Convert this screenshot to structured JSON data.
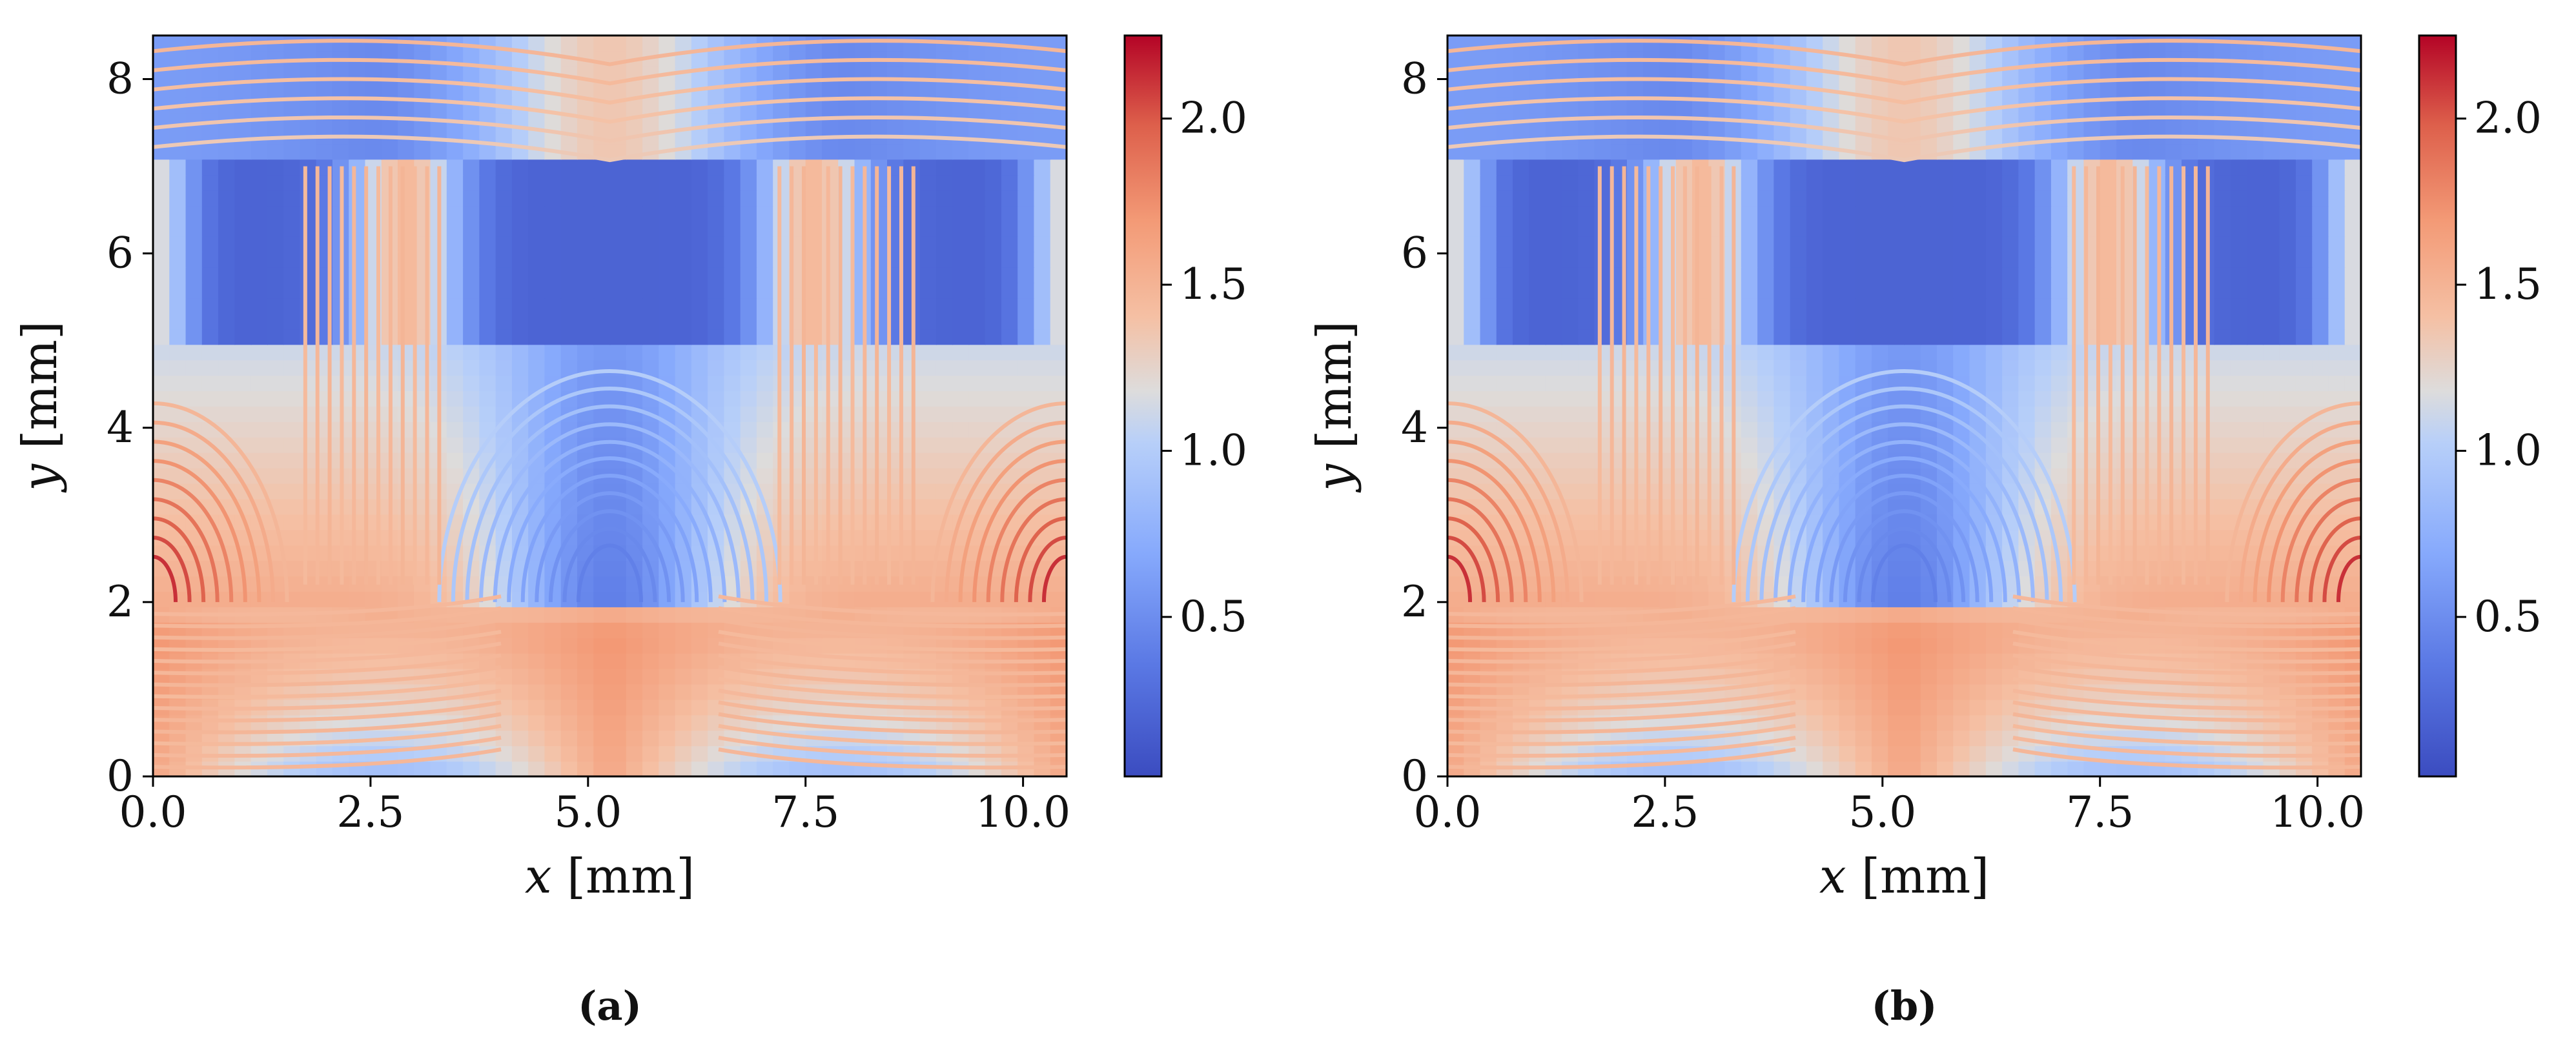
{
  "chart_data": [
    {
      "type": "heatmap",
      "panel_label": "(a)",
      "xlabel_var": "x",
      "xlabel_unit": " [mm]",
      "ylabel_var": "y",
      "ylabel_unit": " [mm]",
      "xlim": [
        0,
        10.5
      ],
      "ylim": [
        0,
        8.5
      ],
      "xticks": [
        0.0,
        2.5,
        5.0,
        7.5,
        10.0
      ],
      "xtick_labels": [
        "0.0",
        "2.5",
        "5.0",
        "7.5",
        "10.0"
      ],
      "yticks": [
        0,
        2,
        4,
        6,
        8
      ],
      "ytick_labels": [
        "0",
        "2",
        "4",
        "6",
        "8"
      ],
      "colormap": "coolwarm",
      "colorbar": {
        "range": [
          0.02,
          2.25
        ],
        "ticks": [
          0.5,
          1.0,
          1.5,
          2.0
        ],
        "tick_labels": [
          "0.5",
          "1.0",
          "1.5",
          "2.0"
        ]
      },
      "layer_boundaries_y": [
        2.0,
        5.0,
        7.0
      ],
      "overlay": "field contour lines colored by magnitude"
    },
    {
      "type": "heatmap",
      "panel_label": "(b)",
      "xlabel_var": "x",
      "xlabel_unit": " [mm]",
      "ylabel_var": "y",
      "ylabel_unit": " [mm]",
      "xlim": [
        0,
        10.5
      ],
      "ylim": [
        0,
        8.5
      ],
      "xticks": [
        0.0,
        2.5,
        5.0,
        7.5,
        10.0
      ],
      "xtick_labels": [
        "0.0",
        "2.5",
        "5.0",
        "7.5",
        "10.0"
      ],
      "yticks": [
        0,
        2,
        4,
        6,
        8
      ],
      "ytick_labels": [
        "0",
        "2",
        "4",
        "6",
        "8"
      ],
      "colormap": "coolwarm",
      "colorbar": {
        "range": [
          0.02,
          2.25
        ],
        "ticks": [
          0.5,
          1.0,
          1.5,
          2.0
        ],
        "tick_labels": [
          "0.5",
          "1.0",
          "1.5",
          "2.0"
        ]
      },
      "layer_boundaries_y": [
        2.0,
        5.0,
        7.0
      ],
      "overlay": "field contour lines colored by magnitude"
    }
  ]
}
